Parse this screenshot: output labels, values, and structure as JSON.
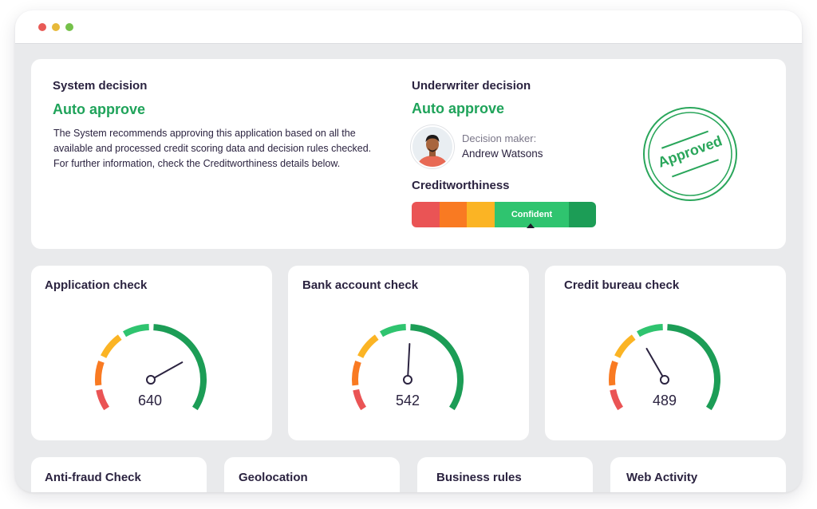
{
  "window": {
    "controls": [
      "close",
      "minimize",
      "maximize"
    ],
    "control_colors": [
      "#e85a56",
      "#e7b93a",
      "#75c14a"
    ]
  },
  "system_decision": {
    "heading": "System decision",
    "result": "Auto approve",
    "description_lines": [
      "The System recommends approving this application based on all the",
      "available and processed credit scoring data and decision rules checked.",
      "For further information, check the Creditworthiness details below."
    ]
  },
  "underwriter_decision": {
    "heading": "Underwriter decision",
    "result": "Auto approve",
    "decision_maker_label": "Decision maker:",
    "decision_maker_name": "Andrew Watsons"
  },
  "creditworthiness": {
    "heading": "Creditworthiness",
    "selected_label": "Confident",
    "segments": [
      {
        "color": "#ea5455"
      },
      {
        "color": "#f97a22"
      },
      {
        "color": "#fbb424"
      },
      {
        "color": "#2fc46f",
        "label": "Confident",
        "selected": true
      },
      {
        "color": "#1c9d56"
      }
    ]
  },
  "stamp": {
    "text": "Approved",
    "color": "#2aa65b"
  },
  "checks": [
    {
      "title": "Application check",
      "score": "640",
      "needle_angle_deg": 61
    },
    {
      "title": "Bank account check",
      "score": "542",
      "needle_angle_deg": 3
    },
    {
      "title": "Credit bureau check",
      "score": "489",
      "needle_angle_deg": -30
    }
  ],
  "bottom_cards": [
    {
      "title": "Anti-fraud Check"
    },
    {
      "title": "Geolocation"
    },
    {
      "title": "Business rules"
    },
    {
      "title": "Web Activity"
    }
  ],
  "gauge_colors": [
    "#ea5455",
    "#f97a22",
    "#fbb424",
    "#2fc46f",
    "#1c9d56"
  ]
}
